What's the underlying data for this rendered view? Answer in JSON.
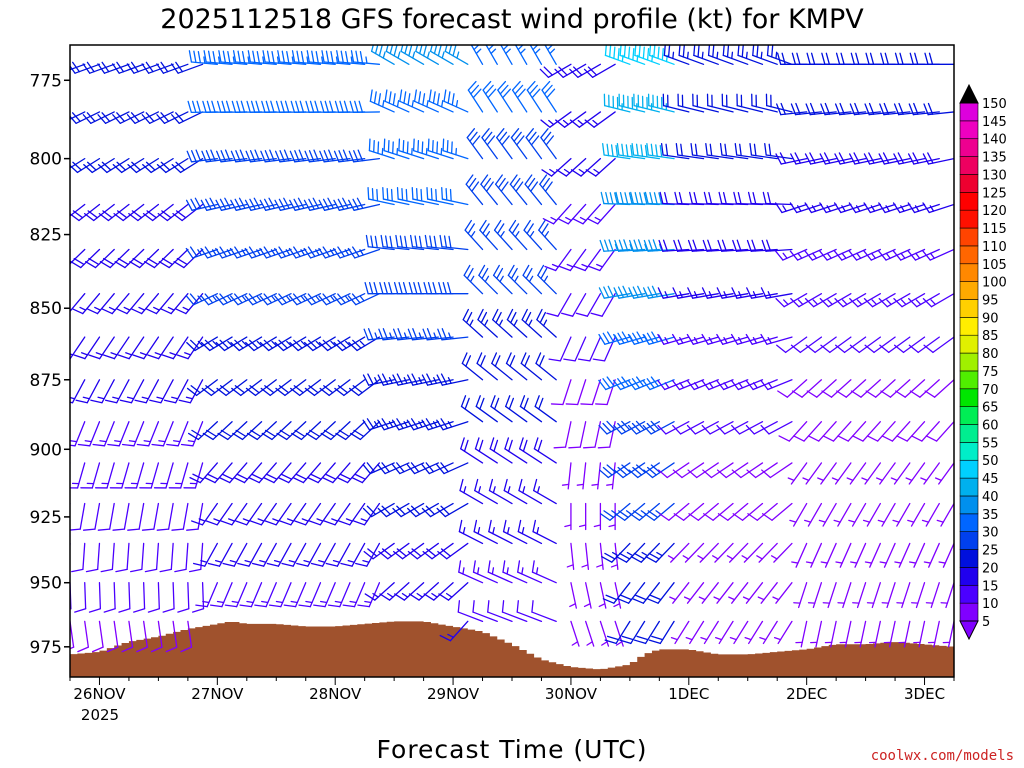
{
  "chart_data": {
    "type": "wind-barb-profile",
    "title": "2025112518 GFS forecast wind profile (kt) for KMPV",
    "xlabel": "Forecast Time (UTC)",
    "ylabel": "",
    "y_units": "hPa",
    "ylim": [
      987,
      764
    ],
    "y_ticks": [
      775,
      800,
      825,
      850,
      875,
      900,
      925,
      950,
      975
    ],
    "x_ticks": [
      {
        "label": "26NOV",
        "hour": 6
      },
      {
        "label": "27NOV",
        "hour": 30
      },
      {
        "label": "28NOV",
        "hour": 54
      },
      {
        "label": "29NOV",
        "hour": 78
      },
      {
        "label": "30NOV",
        "hour": 102
      },
      {
        "label": "1DEC",
        "hour": 126
      },
      {
        "label": "2DEC",
        "hour": 150
      },
      {
        "label": "3DEC",
        "hour": 174
      }
    ],
    "x_year_label": "2025",
    "xlim": [
      0,
      180
    ],
    "barb_levels": [
      770,
      785,
      800,
      815,
      830,
      845,
      860,
      875,
      890,
      905,
      920,
      935,
      950,
      965
    ],
    "barb_interval_hours": 3,
    "wind_segments": [
      {
        "hours": [
          0,
          30
        ],
        "speed_kt": 22,
        "dir_deg": 250,
        "level_speed_change": -0.6
      },
      {
        "hours": [
          30,
          66
        ],
        "speed_kt": 33,
        "dir_deg": 275,
        "level_speed_change": -1.0
      },
      {
        "hours": [
          66,
          84
        ],
        "speed_kt": 36,
        "dir_deg": 300,
        "level_speed_change": -1.0
      },
      {
        "hours": [
          84,
          102
        ],
        "speed_kt": 33,
        "dir_deg": 330,
        "level_speed_change": -1.0
      },
      {
        "hours": [
          102,
          114
        ],
        "speed_kt": 18,
        "dir_deg": 240,
        "level_speed_change": -0.8
      },
      {
        "hours": [
          114,
          126
        ],
        "speed_kt": 45,
        "dir_deg": 290,
        "level_speed_change": -1.2
      },
      {
        "hours": [
          126,
          150
        ],
        "speed_kt": 24,
        "dir_deg": 290,
        "level_speed_change": -1.0
      },
      {
        "hours": [
          150,
          180
        ],
        "speed_kt": 22,
        "dir_deg": 270,
        "level_speed_change": -1.1
      }
    ],
    "terrain_pressure_hpa": [
      [
        0,
        978
      ],
      [
        6,
        977
      ],
      [
        12,
        973
      ],
      [
        18,
        971
      ],
      [
        24,
        968
      ],
      [
        30,
        966
      ],
      [
        33,
        965
      ],
      [
        36,
        966
      ],
      [
        42,
        966
      ],
      [
        48,
        967
      ],
      [
        54,
        967
      ],
      [
        60,
        966
      ],
      [
        66,
        965
      ],
      [
        72,
        965
      ],
      [
        78,
        967
      ],
      [
        84,
        969
      ],
      [
        90,
        974
      ],
      [
        96,
        980
      ],
      [
        102,
        983
      ],
      [
        108,
        984
      ],
      [
        114,
        982
      ],
      [
        117,
        978
      ],
      [
        120,
        976
      ],
      [
        126,
        976
      ],
      [
        132,
        978
      ],
      [
        138,
        978
      ],
      [
        144,
        977
      ],
      [
        150,
        976
      ],
      [
        156,
        974
      ],
      [
        162,
        974
      ],
      [
        168,
        973
      ],
      [
        174,
        974
      ],
      [
        180,
        975
      ]
    ],
    "terrain_color": "#a0522d",
    "colorbar": {
      "units": "kt",
      "levels": [
        5,
        10,
        15,
        20,
        25,
        30,
        35,
        40,
        45,
        50,
        55,
        60,
        65,
        70,
        75,
        80,
        85,
        90,
        95,
        100,
        105,
        110,
        115,
        120,
        125,
        130,
        135,
        140,
        145,
        150
      ],
      "labels": [
        "5",
        "10",
        "15",
        "20",
        "25",
        "30",
        "35",
        "40",
        "45",
        "50",
        "55",
        "60",
        "65",
        "70",
        "75",
        "80",
        "85",
        "90",
        "95",
        "100",
        "105",
        "110",
        "115",
        "120",
        "125",
        "130",
        "135",
        "140",
        "145",
        "150"
      ],
      "colors": [
        "#8000ff",
        "#4b00ff",
        "#2000ee",
        "#0010dd",
        "#0040ee",
        "#0066ff",
        "#0090ee",
        "#00b0ee",
        "#00d0ff",
        "#00eec8",
        "#00ee90",
        "#00ee55",
        "#00e600",
        "#50ee00",
        "#a0f000",
        "#e0f000",
        "#ffee00",
        "#ffd000",
        "#ffaa00",
        "#ff8800",
        "#ff6600",
        "#ff4400",
        "#ff1000",
        "#ff0000",
        "#ee0030",
        "#ee0060",
        "#ee0090",
        "#ee00c0",
        "#dd00dd",
        "#000000"
      ]
    }
  },
  "credit": "coolwx.com/models"
}
